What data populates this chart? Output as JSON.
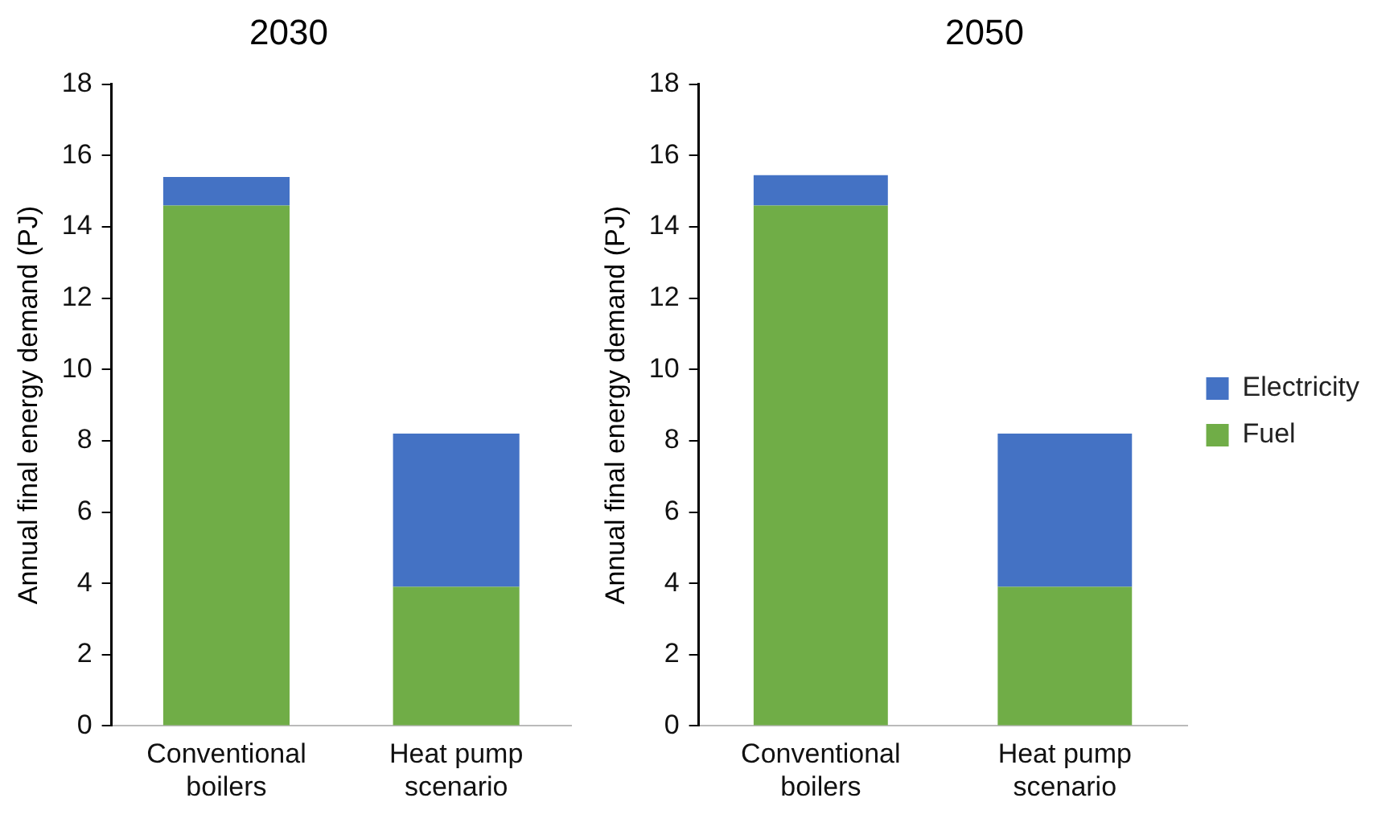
{
  "chart_data": [
    {
      "type": "bar",
      "title": "2030",
      "ylabel": "Annual final energy demand (PJ)",
      "categories": [
        "Conventional boilers",
        "Heat pump scenario"
      ],
      "stacked": true,
      "series": [
        {
          "color": "#70ad47",
          "values": [
            14.6,
            3.9
          ]
        },
        {
          "color": "#4472c4",
          "values": [
            0.8,
            4.3
          ]
        }
      ],
      "ylim": [
        0,
        18
      ],
      "yticks": [
        0,
        2,
        4,
        6,
        8,
        10,
        12,
        14,
        16,
        18
      ],
      "grid": false,
      "legend": false
    },
    {
      "type": "bar",
      "title": "2050",
      "ylabel": "Annual final energy demand (PJ)",
      "categories": [
        "Conventional boilers",
        "Heat pump scenario"
      ],
      "stacked": true,
      "series": [
        {
          "name": "Fuel",
          "color": "#70ad47",
          "values": [
            14.6,
            3.9
          ]
        },
        {
          "name": "Electricity",
          "color": "#4472c4",
          "values": [
            0.85,
            4.3
          ]
        }
      ],
      "ylim": [
        0,
        18
      ],
      "yticks": [
        0,
        2,
        4,
        6,
        8,
        10,
        12,
        14,
        16,
        18
      ],
      "grid": false,
      "legend": "right"
    }
  ]
}
